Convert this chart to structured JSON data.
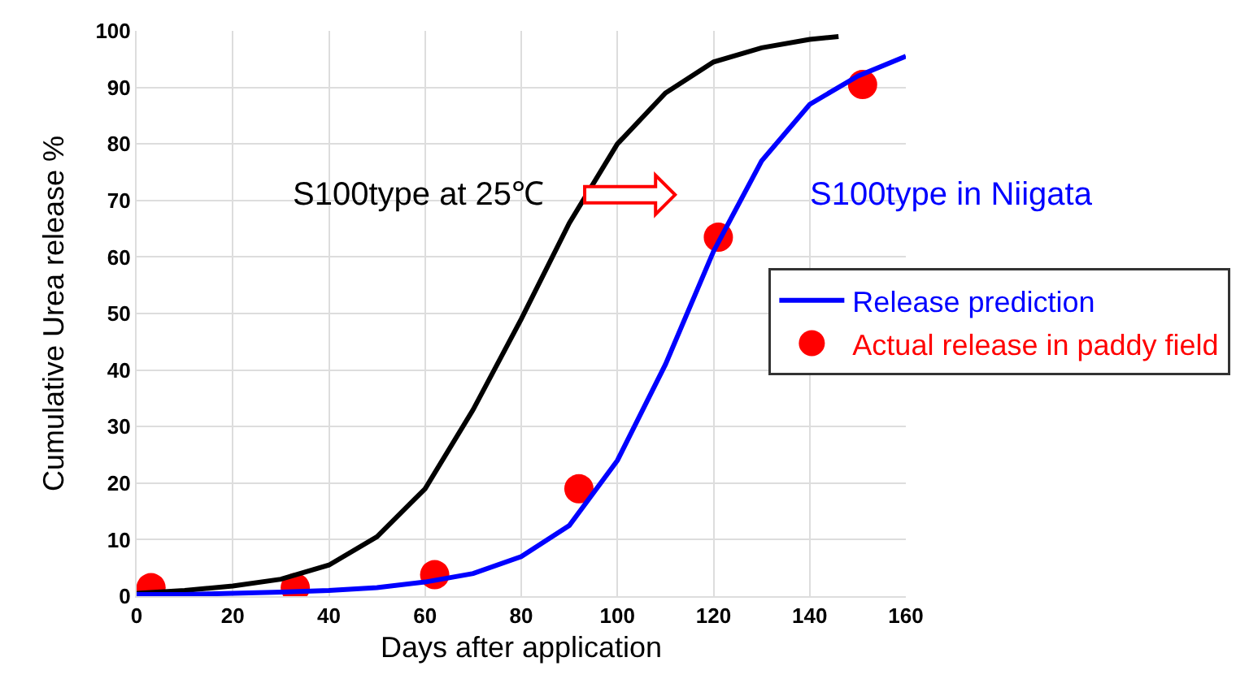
{
  "chart_data": {
    "type": "line",
    "xlabel": "Days after application",
    "ylabel": "Cumulative Urea release %",
    "xlim": [
      0,
      160
    ],
    "xticks": [
      0,
      20,
      40,
      60,
      80,
      100,
      120,
      140,
      160
    ],
    "ylim": [
      0,
      100
    ],
    "yticks": [
      0,
      10,
      20,
      30,
      40,
      50,
      60,
      70,
      80,
      90,
      100
    ],
    "grid": true,
    "legend": "right",
    "series": [
      {
        "color": "#000000",
        "x": [
          0,
          10,
          20,
          30,
          40,
          50,
          60,
          70,
          80,
          90,
          100,
          110,
          120,
          130,
          140,
          146
        ],
        "values": [
          0.5,
          1,
          1.8,
          3,
          5.5,
          10.5,
          19,
          33,
          49,
          66,
          80,
          89,
          94.5,
          97,
          98.5,
          99
        ]
      },
      {
        "name": "Release prediction",
        "color": "#0000ff",
        "x": [
          0,
          10,
          20,
          30,
          40,
          50,
          60,
          70,
          80,
          90,
          100,
          110,
          120,
          130,
          140,
          150,
          160
        ],
        "values": [
          0.3,
          0.3,
          0.5,
          0.7,
          1,
          1.5,
          2.5,
          4,
          7,
          12.5,
          24,
          41,
          61,
          77,
          87,
          92,
          95.5
        ]
      },
      {
        "type": "scatter",
        "name": "Actual release in paddy field",
        "color": "#ff0000",
        "marker": "circle",
        "x": [
          3,
          33,
          62,
          92,
          121,
          151
        ],
        "values": [
          1.5,
          1.5,
          3.8,
          19,
          63.5,
          90.5
        ]
      }
    ],
    "annotations": [
      "S100type at 25℃",
      "S100type in Niigata"
    ]
  }
}
